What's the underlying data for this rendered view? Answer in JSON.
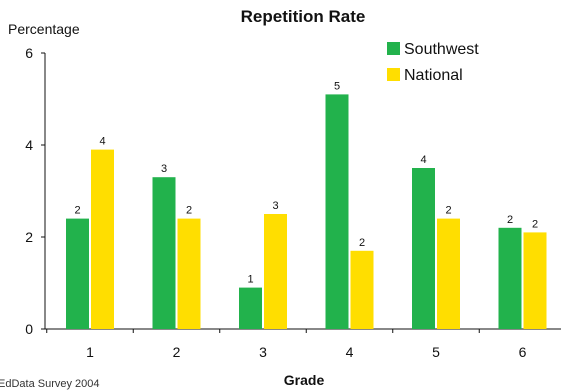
{
  "chart_data": {
    "type": "bar",
    "title": "Repetition Rate",
    "ylabel": "Percentage",
    "xlabel": "Grade",
    "categories": [
      "1",
      "2",
      "3",
      "4",
      "5",
      "6"
    ],
    "ylim": [
      0,
      6
    ],
    "yticks": [
      0,
      2,
      4,
      6
    ],
    "grid": false,
    "legend_position": "top-right",
    "series": [
      {
        "name": "Southwest",
        "color": "#22b24c",
        "values": [
          2.4,
          3.3,
          0.9,
          5.1,
          3.5,
          2.2
        ],
        "labels": [
          "2",
          "3",
          "1",
          "5",
          "4",
          "2"
        ]
      },
      {
        "name": "National",
        "color": "#ffde00",
        "values": [
          3.9,
          2.4,
          2.5,
          1.7,
          2.4,
          2.1
        ],
        "labels": [
          "4",
          "2",
          "3",
          "2",
          "2",
          "2"
        ]
      }
    ],
    "source": "EdData Survey 2004"
  }
}
